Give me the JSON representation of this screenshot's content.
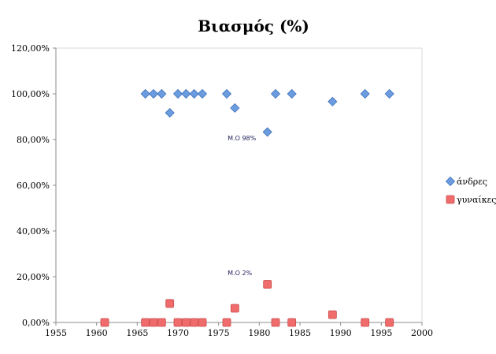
{
  "chart_data": {
    "type": "scatter",
    "title": "Βιασμός (%)",
    "xlabel": "",
    "ylabel": "",
    "xlim": [
      1955,
      2000
    ],
    "ylim": [
      0,
      1.2
    ],
    "x_ticks": [
      1955,
      1960,
      1965,
      1970,
      1975,
      1980,
      1985,
      1990,
      1995,
      2000
    ],
    "y_ticks": [
      "0,00%",
      "20,00%",
      "40,00%",
      "60,00%",
      "80,00%",
      "100,00%",
      "120,00%"
    ],
    "grid": false,
    "legend_position": "right",
    "series": [
      {
        "name": "άνδρες",
        "marker": "diamond",
        "color": "#6c9ce0",
        "points": [
          [
            1966,
            1.0
          ],
          [
            1967,
            1.0
          ],
          [
            1968,
            1.0
          ],
          [
            1969,
            0.917
          ],
          [
            1970,
            1.0
          ],
          [
            1971,
            1.0
          ],
          [
            1972,
            1.0
          ],
          [
            1973,
            1.0
          ],
          [
            1976,
            1.0
          ],
          [
            1977,
            0.938
          ],
          [
            1981,
            0.833
          ],
          [
            1982,
            1.0
          ],
          [
            1984,
            1.0
          ],
          [
            1989,
            0.966
          ],
          [
            1993,
            1.0
          ],
          [
            1996,
            1.0
          ]
        ]
      },
      {
        "name": "γυναίκες",
        "marker": "square",
        "color": "#f06c6c",
        "points": [
          [
            1961,
            0.0
          ],
          [
            1966,
            0.0
          ],
          [
            1967,
            0.0
          ],
          [
            1968,
            0.0
          ],
          [
            1969,
            0.083
          ],
          [
            1970,
            0.0
          ],
          [
            1971,
            0.0
          ],
          [
            1972,
            0.0
          ],
          [
            1973,
            0.0
          ],
          [
            1976,
            0.0
          ],
          [
            1977,
            0.062
          ],
          [
            1981,
            0.167
          ],
          [
            1982,
            0.0
          ],
          [
            1984,
            0.0
          ],
          [
            1989,
            0.034
          ],
          [
            1993,
            0.0
          ],
          [
            1996,
            0.0
          ]
        ]
      }
    ],
    "annotations": [
      {
        "text": "Μ.Ο 98%",
        "x": 1976.5,
        "y": 0.8
      },
      {
        "text": "Μ.Ο 2%",
        "x": 1976.5,
        "y": 0.21
      }
    ]
  }
}
